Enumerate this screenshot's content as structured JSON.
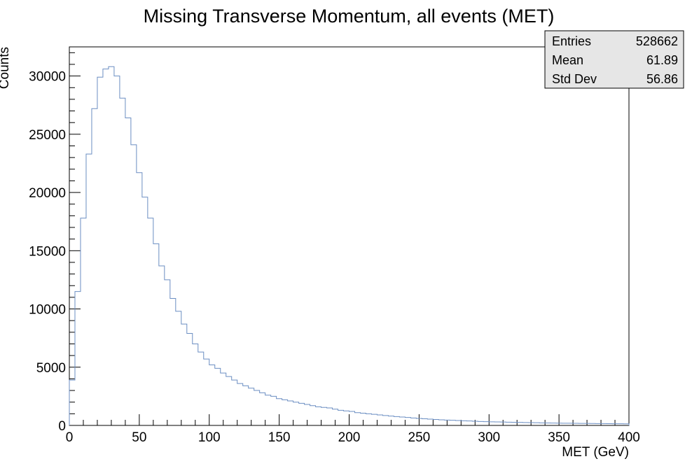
{
  "chart_data": {
    "type": "histogram",
    "title": "Missing Transverse Momentum, all events (MET)",
    "xlabel": "MET (GeV)",
    "ylabel": "Counts",
    "xlim": [
      0,
      400
    ],
    "ylim": [
      0,
      32500
    ],
    "bin_width": 4,
    "x_ticks": [
      0,
      50,
      100,
      150,
      200,
      250,
      300,
      350,
      400
    ],
    "y_ticks": [
      0,
      5000,
      10000,
      15000,
      20000,
      25000,
      30000
    ],
    "values": [
      3900,
      11500,
      17800,
      23300,
      27200,
      29900,
      30600,
      30800,
      30000,
      28100,
      26400,
      24100,
      21700,
      19600,
      17800,
      15600,
      13700,
      12500,
      10900,
      9800,
      8700,
      7900,
      7000,
      6300,
      5700,
      5200,
      4900,
      4500,
      4200,
      3900,
      3600,
      3400,
      3200,
      3000,
      2800,
      2600,
      2500,
      2300,
      2200,
      2100,
      2000,
      1900,
      1800,
      1700,
      1600,
      1550,
      1500,
      1400,
      1300,
      1250,
      1200,
      1100,
      1050,
      1000,
      950,
      900,
      850,
      800,
      760,
      720,
      680,
      640,
      600,
      570,
      540,
      510,
      480,
      460,
      440,
      420,
      400,
      380,
      360,
      340,
      320,
      310,
      300,
      290,
      280,
      270,
      260,
      250,
      240,
      230,
      220,
      210,
      200,
      195,
      190,
      185,
      180,
      175,
      170,
      165,
      160,
      155,
      150,
      145,
      140,
      135
    ],
    "line_color": "#6b8ec2",
    "stats": {
      "rows": [
        {
          "label": "Entries",
          "value": "528662"
        },
        {
          "label": "Mean",
          "value": "61.89"
        },
        {
          "label": "Std Dev",
          "value": "56.86"
        }
      ]
    }
  }
}
